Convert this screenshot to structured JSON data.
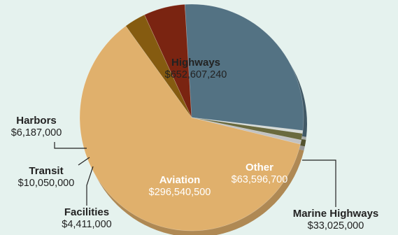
{
  "chart_data": {
    "type": "pie",
    "slices": [
      {
        "label": "Highways",
        "value": "$652,607,240",
        "amount": 652607240,
        "color": "#e0b06c"
      },
      {
        "label": "Marine Highways",
        "value": "$33,025,000",
        "amount": 33025000,
        "color": "#855b10"
      },
      {
        "label": "Other",
        "value": "$63,596,700",
        "amount": 63596700,
        "color": "#7a2411"
      },
      {
        "label": "Aviation",
        "value": "$296,540,500",
        "amount": 296540500,
        "color": "#537283"
      },
      {
        "label": "Facilities",
        "value": "$4,411,000",
        "amount": 4411000,
        "color": "#d6dbd7"
      },
      {
        "label": "Transit",
        "value": "$10,050,000",
        "amount": 10050000,
        "color": "#6a6a3e"
      },
      {
        "label": "Harbors",
        "value": "$6,187,000",
        "amount": 6187000,
        "color": "#c2c2c2"
      }
    ],
    "legend": "none",
    "style": "3d"
  }
}
